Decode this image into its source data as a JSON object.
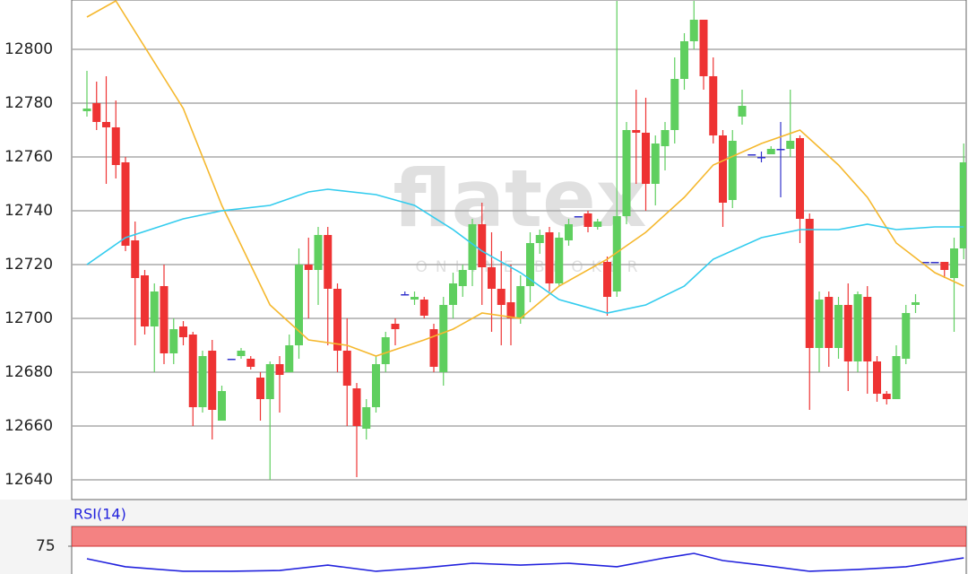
{
  "watermark": {
    "text": "flatex",
    "subtext": "ONLINE BROKER"
  },
  "chart_data": [
    {
      "type": "candlestick",
      "ylim": [
        12632.67,
        12818.33
      ],
      "yticks": [
        12640,
        12660,
        12680,
        12700,
        12720,
        12740,
        12760,
        12780,
        12800
      ],
      "grid": true,
      "up_color": "#5fcf5f",
      "down_color": "#ee3333",
      "doji_color": "#3333cc",
      "open": [
        12777,
        12780,
        12773,
        12771,
        12758,
        12729,
        12716,
        12697,
        12712,
        12687,
        12697,
        12694,
        12667,
        12688,
        12662,
        12685,
        12686,
        12685,
        12678,
        12670,
        12683,
        12680,
        12690,
        12720,
        12718,
        12731,
        12711,
        12688,
        12674,
        12659,
        12667,
        12683,
        12698,
        12709,
        12707,
        12707,
        12696,
        12680,
        12705,
        12712,
        12718,
        12735,
        12719,
        12711,
        12706,
        12700,
        12712,
        12728,
        12732,
        12713,
        12729,
        12738,
        12739,
        12734,
        12721,
        12710,
        12738,
        12770,
        12769,
        12750,
        12764,
        12770,
        12789,
        12803,
        12811,
        12790,
        12768,
        12744,
        12775,
        12761,
        12760,
        12761,
        12763,
        12763,
        12767,
        12737,
        12689,
        12708,
        12689,
        12705,
        12684,
        12708,
        12684,
        12672,
        12670,
        12685,
        12705,
        12721,
        12721,
        12721,
        12715,
        12726
      ],
      "high": [
        12792,
        12788,
        12790,
        12781,
        12760,
        12736,
        12718,
        12713,
        12720,
        12700,
        12699,
        12695,
        12688,
        12692,
        12675,
        12685,
        12689,
        12686,
        12680,
        12684,
        12686,
        12694,
        12726,
        12730,
        12734,
        12734,
        12713,
        12700,
        12676,
        12670,
        12686,
        12695,
        12700,
        12710,
        12710,
        12708,
        12698,
        12708,
        12717,
        12720,
        12737,
        12743,
        12732,
        12725,
        12720,
        12716,
        12732,
        12733,
        12734,
        12732,
        12737,
        12738,
        12740,
        12737,
        12723,
        12818,
        12773,
        12785,
        12782,
        12768,
        12773,
        12797,
        12806,
        12818,
        12811,
        12797,
        12770,
        12770,
        12785,
        12761,
        12762,
        12764,
        12773,
        12785,
        12768,
        12739,
        12710,
        12710,
        12708,
        12713,
        12710,
        12712,
        12686,
        12673,
        12690,
        12705,
        12709,
        12721,
        12721,
        12721,
        12730,
        12765
      ],
      "low": [
        12775,
        12770,
        12750,
        12752,
        12725,
        12690,
        12694,
        12680,
        12683,
        12683,
        12690,
        12660,
        12665,
        12655,
        12662,
        12685,
        12685,
        12681,
        12662,
        12640,
        12665,
        12680,
        12685,
        12700,
        12705,
        12690,
        12680,
        12660,
        12641,
        12655,
        12665,
        12680,
        12690,
        12709,
        12705,
        12700,
        12680,
        12675,
        12700,
        12708,
        12712,
        12705,
        12695,
        12690,
        12690,
        12698,
        12706,
        12724,
        12710,
        12712,
        12727,
        12738,
        12732,
        12733,
        12701,
        12708,
        12735,
        12750,
        12740,
        12742,
        12755,
        12765,
        12785,
        12800,
        12785,
        12765,
        12734,
        12741,
        12772,
        12761,
        12758,
        12761,
        12745,
        12760,
        12728,
        12666,
        12680,
        12682,
        12685,
        12673,
        12680,
        12672,
        12669,
        12668,
        12670,
        12683,
        12702,
        12721,
        12721,
        12715,
        12695,
        12722
      ],
      "close": [
        12778,
        12773,
        12771,
        12757,
        12727,
        12715,
        12697,
        12710,
        12687,
        12696,
        12693,
        12667,
        12686,
        12666,
        12673,
        12685,
        12688,
        12682,
        12670,
        12683,
        12679,
        12690,
        12720,
        12718,
        12731,
        12711,
        12688,
        12675,
        12660,
        12667,
        12683,
        12693,
        12696,
        12709,
        12708,
        12701,
        12682,
        12705,
        12713,
        12718,
        12735,
        12719,
        12711,
        12705,
        12700,
        12712,
        12728,
        12731,
        12713,
        12730,
        12735,
        12738,
        12734,
        12736,
        12708,
        12738,
        12770,
        12769,
        12750,
        12765,
        12770,
        12789,
        12803,
        12811,
        12790,
        12768,
        12743,
        12766,
        12779,
        12761,
        12760,
        12763,
        12763,
        12766,
        12737,
        12689,
        12707,
        12689,
        12705,
        12684,
        12709,
        12684,
        12672,
        12670,
        12686,
        12702,
        12706,
        12721,
        12721,
        12718,
        12726,
        12758
      ],
      "series": [
        {
          "color": "#f5b82e",
          "x": [
            0,
            3,
            10,
            14,
            19,
            23,
            27,
            30,
            35,
            38,
            41,
            45,
            49,
            54,
            58,
            62,
            65,
            70,
            74,
            78,
            81,
            84,
            88,
            91
          ],
          "values": [
            12812,
            12818,
            12778,
            12742,
            12705,
            12692,
            12690,
            12686,
            12692,
            12696,
            12702,
            12700,
            12712,
            12722,
            12732,
            12745,
            12757,
            12765,
            12770,
            12757,
            12745,
            12728,
            12717,
            12712
          ]
        },
        {
          "color": "#33ccee",
          "x": [
            0,
            4,
            10,
            14,
            19,
            23,
            25,
            30,
            34,
            38,
            41,
            45,
            49,
            54,
            58,
            62,
            65,
            70,
            74,
            78,
            81,
            84,
            88,
            91
          ],
          "values": [
            12720,
            12730,
            12737,
            12740,
            12742,
            12747,
            12748,
            12746,
            12742,
            12733,
            12725,
            12717,
            12707,
            12702,
            12705,
            12712,
            12722,
            12730,
            12733,
            12733,
            12735,
            12733,
            12734,
            12734
          ]
        }
      ]
    },
    {
      "type": "line",
      "title": "RSI(14)",
      "ylim": [
        39.77,
        100
      ],
      "yticks": [
        75
      ],
      "band": [
        75,
        100
      ],
      "band_color": "#f48282",
      "series": [
        {
          "color": "#2222dd",
          "x": [
            0,
            4,
            10,
            15,
            20,
            25,
            30,
            35,
            40,
            45,
            50,
            55,
            60,
            63,
            66,
            70,
            75,
            80,
            85,
            91
          ],
          "values": [
            59.1,
            48.9,
            43.2,
            43.2,
            44.3,
            51.1,
            43.2,
            47.7,
            53.4,
            51.1,
            53.4,
            48.9,
            60.2,
            65.9,
            56.8,
            51.1,
            43.2,
            45.5,
            48.9,
            60.2
          ]
        }
      ]
    }
  ]
}
